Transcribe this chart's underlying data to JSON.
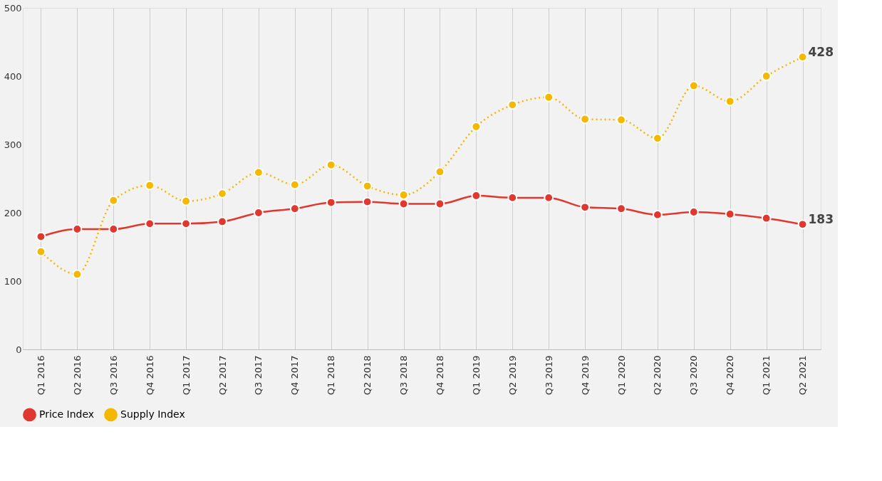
{
  "chart_data": {
    "type": "line",
    "categories": [
      "Q1 2016",
      "Q2 2016",
      "Q3 2016",
      "Q4 2016",
      "Q1 2017",
      "Q2 2017",
      "Q3 2017",
      "Q4 2017",
      "Q1 2018",
      "Q2 2018",
      "Q3 2018",
      "Q4 2018",
      "Q1 2019",
      "Q2 2019",
      "Q3 2019",
      "Q4 2019",
      "Q1 2020",
      "Q2 2020",
      "Q3 2020",
      "Q4 2020",
      "Q1 2021",
      "Q2 2021"
    ],
    "series": [
      {
        "name": "Price Index",
        "color": "#e0382e",
        "line_style": "solid",
        "values": [
          165,
          176,
          176,
          184,
          184,
          187,
          200,
          206,
          215,
          216,
          213,
          213,
          225,
          222,
          222,
          208,
          206,
          197,
          201,
          198,
          192,
          183
        ]
      },
      {
        "name": "Supply Index",
        "color": "#f5b800",
        "line_style": "dotted",
        "values": [
          143,
          110,
          218,
          240,
          217,
          228,
          259,
          241,
          270,
          239,
          226,
          260,
          326,
          358,
          369,
          337,
          336,
          309,
          386,
          363,
          400,
          428
        ]
      }
    ],
    "ylim": [
      0,
      500
    ],
    "yticks": [
      0,
      100,
      200,
      300,
      400,
      500
    ],
    "grid": "x",
    "legend": "bottom",
    "marker": "circle",
    "annotations": [
      {
        "text": "183",
        "x": "Q2 2021",
        "y": 183
      },
      {
        "text": "428",
        "x": "Q2 2021",
        "y": 428
      }
    ]
  }
}
